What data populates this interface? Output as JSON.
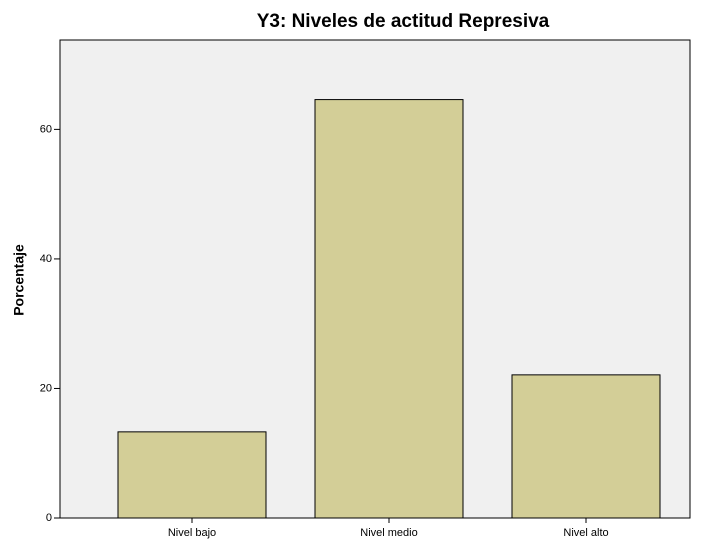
{
  "chart_data": {
    "type": "bar",
    "title": "Y3: Niveles de actitud Represiva",
    "y_label": "Porcentaje",
    "categories": [
      "Nivel bajo",
      "Nivel medio",
      "Nivel alto"
    ],
    "values": [
      13.3,
      64.6,
      22.1
    ],
    "color": "#d3ce97",
    "ylim": [
      0,
      73.8
    ],
    "yticks": [
      0,
      20,
      40,
      60
    ],
    "grid": false
  }
}
